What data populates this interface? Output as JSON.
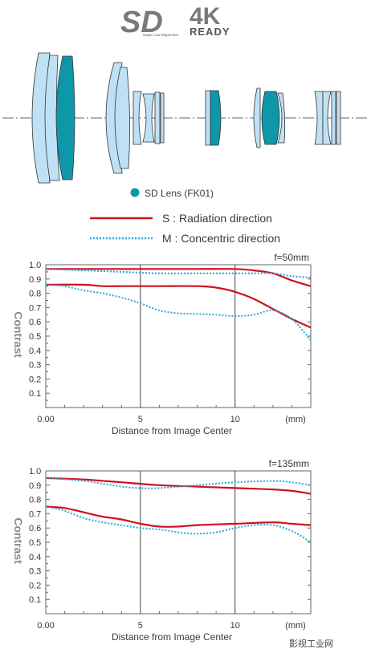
{
  "logos": {
    "sd_main": "SD",
    "sd_sub": "Super Low Dispersion",
    "k4_main": "4K",
    "k4_sub": "READY"
  },
  "lens_legend": {
    "label": "SD Lens (FK01)",
    "color": "#0e97a8"
  },
  "mtf_legend": [
    {
      "label": "S : Radiation direction",
      "style": "solid",
      "color": "#d0101e"
    },
    {
      "label": "M : Concentric direction",
      "style": "dotted",
      "color": "#2aa6dc"
    }
  ],
  "watermark": "影视工业网",
  "chart_data": [
    {
      "type": "line",
      "annotation": "f=50mm",
      "ylabel": "Contrast",
      "xlabel": "Distance from Image Center",
      "xlim": [
        0,
        14
      ],
      "ylim": [
        0,
        1.0
      ],
      "x_ticks": [
        "0.00",
        "5",
        "10"
      ],
      "x_unit_label": "(mm)",
      "y_ticks": [
        "0.1",
        "0.2",
        "0.3",
        "0.4",
        "0.5",
        "0.6",
        "0.7",
        "0.8",
        "0.9",
        "1.0"
      ],
      "series": [
        {
          "style": "solid",
          "color": "#d0101e",
          "points": [
            [
              0,
              0.97
            ],
            [
              2,
              0.97
            ],
            [
              4,
              0.97
            ],
            [
              6,
              0.97
            ],
            [
              8,
              0.97
            ],
            [
              10,
              0.97
            ],
            [
              11,
              0.96
            ],
            [
              12,
              0.94
            ],
            [
              13,
              0.89
            ],
            [
              14,
              0.85
            ]
          ]
        },
        {
          "style": "dotted",
          "color": "#2aa6dc",
          "points": [
            [
              0,
              0.97
            ],
            [
              2,
              0.96
            ],
            [
              4,
              0.95
            ],
            [
              6,
              0.94
            ],
            [
              8,
              0.94
            ],
            [
              10,
              0.94
            ],
            [
              11,
              0.94
            ],
            [
              12,
              0.94
            ],
            [
              13,
              0.92
            ],
            [
              14,
              0.91
            ]
          ]
        },
        {
          "style": "solid",
          "color": "#d0101e",
          "points": [
            [
              0,
              0.86
            ],
            [
              2,
              0.86
            ],
            [
              3,
              0.85
            ],
            [
              4,
              0.85
            ],
            [
              6,
              0.85
            ],
            [
              8,
              0.85
            ],
            [
              9,
              0.84
            ],
            [
              10,
              0.81
            ],
            [
              11,
              0.76
            ],
            [
              12,
              0.69
            ],
            [
              13,
              0.62
            ],
            [
              14,
              0.56
            ]
          ]
        },
        {
          "style": "dotted",
          "color": "#2aa6dc",
          "points": [
            [
              0,
              0.86
            ],
            [
              1,
              0.85
            ],
            [
              2,
              0.82
            ],
            [
              3,
              0.8
            ],
            [
              4,
              0.77
            ],
            [
              5,
              0.73
            ],
            [
              6,
              0.68
            ],
            [
              7,
              0.66
            ],
            [
              8,
              0.655
            ],
            [
              9,
              0.65
            ],
            [
              10,
              0.64
            ],
            [
              11,
              0.65
            ],
            [
              12,
              0.68
            ],
            [
              13,
              0.62
            ],
            [
              14,
              0.47
            ]
          ]
        }
      ]
    },
    {
      "type": "line",
      "annotation": "f=135mm",
      "ylabel": "Contrast",
      "xlabel": "Distance from Image Center",
      "xlim": [
        0,
        14
      ],
      "ylim": [
        0,
        1.0
      ],
      "x_ticks": [
        "0.00",
        "5",
        "10"
      ],
      "x_unit_label": "(mm)",
      "y_ticks": [
        "0.1",
        "0.2",
        "0.3",
        "0.4",
        "0.5",
        "0.6",
        "0.7",
        "0.8",
        "0.9",
        "1.0"
      ],
      "series": [
        {
          "style": "solid",
          "color": "#d0101e",
          "points": [
            [
              0,
              0.95
            ],
            [
              2,
              0.94
            ],
            [
              4,
              0.92
            ],
            [
              6,
              0.9
            ],
            [
              8,
              0.89
            ],
            [
              10,
              0.88
            ],
            [
              12,
              0.87
            ],
            [
              13,
              0.86
            ],
            [
              14,
              0.84
            ]
          ]
        },
        {
          "style": "dotted",
          "color": "#2aa6dc",
          "points": [
            [
              0,
              0.95
            ],
            [
              2,
              0.93
            ],
            [
              4,
              0.89
            ],
            [
              5,
              0.88
            ],
            [
              6,
              0.88
            ],
            [
              8,
              0.9
            ],
            [
              10,
              0.92
            ],
            [
              12,
              0.93
            ],
            [
              13,
              0.92
            ],
            [
              14,
              0.9
            ]
          ]
        },
        {
          "style": "solid",
          "color": "#d0101e",
          "points": [
            [
              0,
              0.75
            ],
            [
              1,
              0.74
            ],
            [
              2,
              0.71
            ],
            [
              3,
              0.68
            ],
            [
              4,
              0.66
            ],
            [
              5,
              0.63
            ],
            [
              6,
              0.61
            ],
            [
              7,
              0.61
            ],
            [
              8,
              0.62
            ],
            [
              10,
              0.63
            ],
            [
              12,
              0.64
            ],
            [
              13,
              0.63
            ],
            [
              14,
              0.62
            ]
          ]
        },
        {
          "style": "dotted",
          "color": "#2aa6dc",
          "points": [
            [
              0,
              0.75
            ],
            [
              1,
              0.72
            ],
            [
              2,
              0.67
            ],
            [
              3,
              0.64
            ],
            [
              4,
              0.62
            ],
            [
              5,
              0.6
            ],
            [
              6,
              0.59
            ],
            [
              7,
              0.57
            ],
            [
              8,
              0.56
            ],
            [
              9,
              0.57
            ],
            [
              10,
              0.6
            ],
            [
              11,
              0.62
            ],
            [
              12,
              0.62
            ],
            [
              13,
              0.58
            ],
            [
              14,
              0.5
            ]
          ]
        }
      ]
    }
  ]
}
